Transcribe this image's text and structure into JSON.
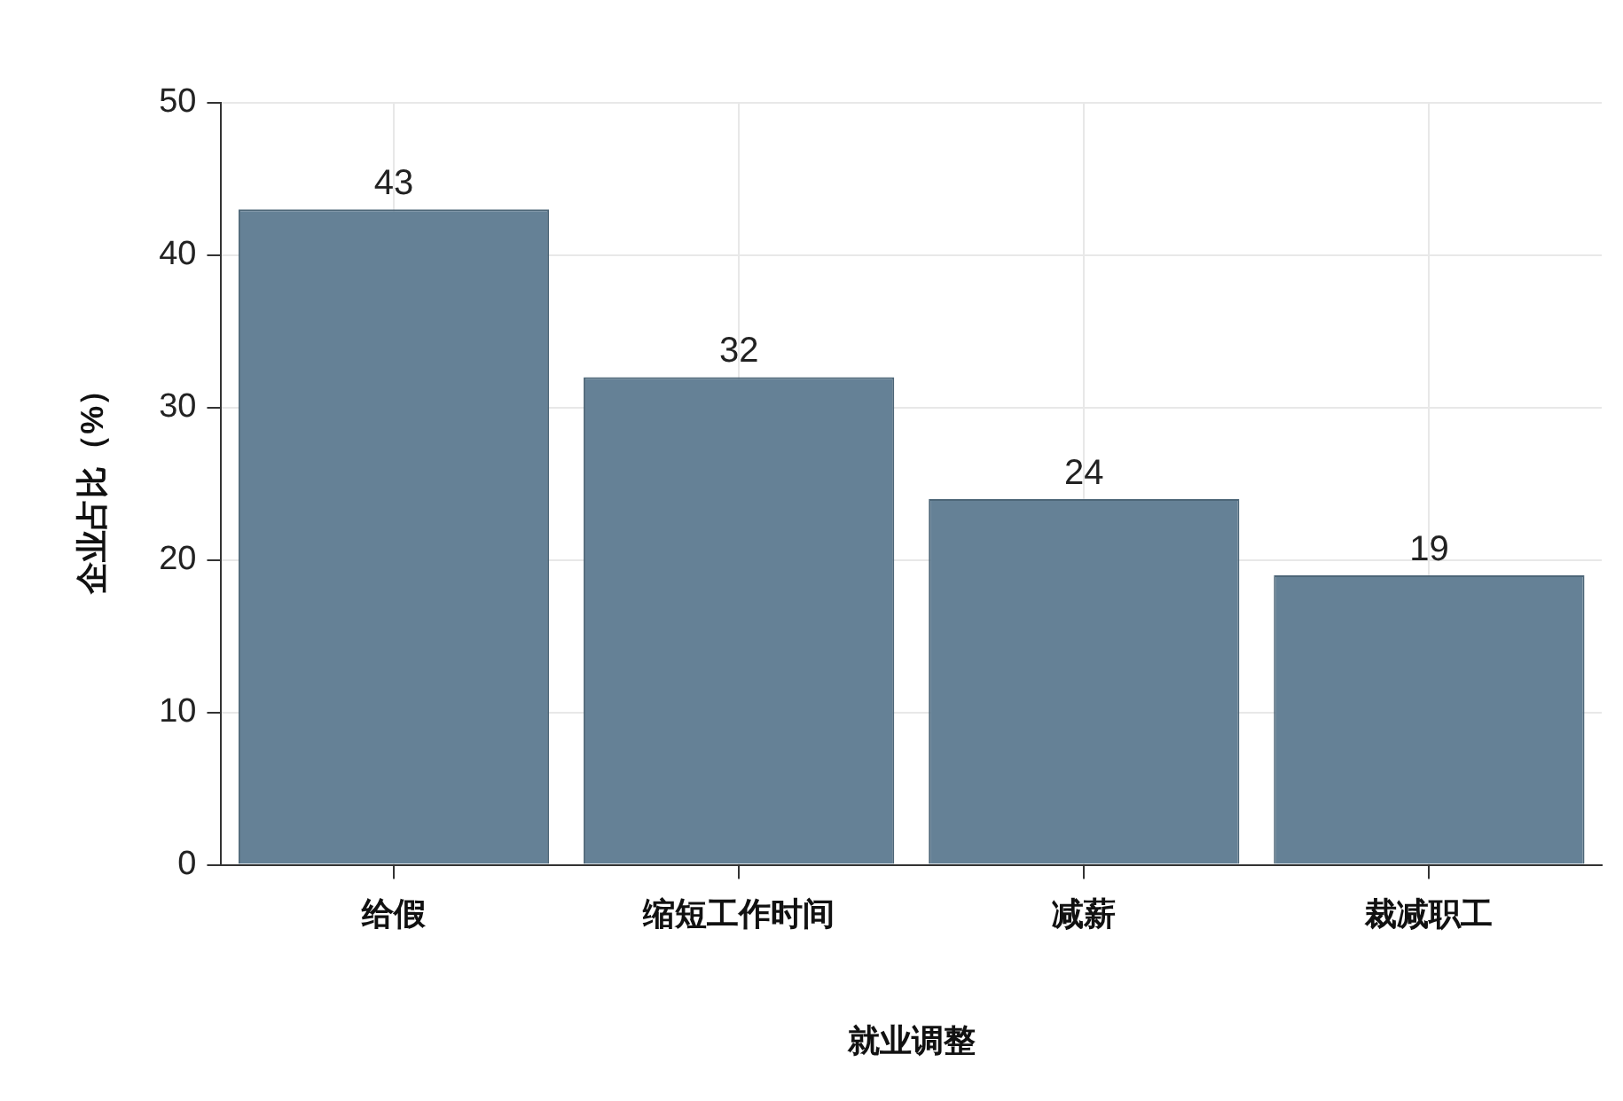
{
  "chart_data": {
    "type": "bar",
    "xlabel": "就业调整",
    "ylabel": "企业占比（%）",
    "categories": [
      "给假",
      "缩短工作时间",
      "减薪",
      "裁减职工"
    ],
    "values": [
      43,
      32,
      24,
      19
    ],
    "color": "#658196",
    "ylim": [
      0,
      50
    ],
    "yticks": [
      0,
      10,
      20,
      30,
      40,
      50
    ],
    "grid": true,
    "data_labels": true,
    "legend": false
  }
}
